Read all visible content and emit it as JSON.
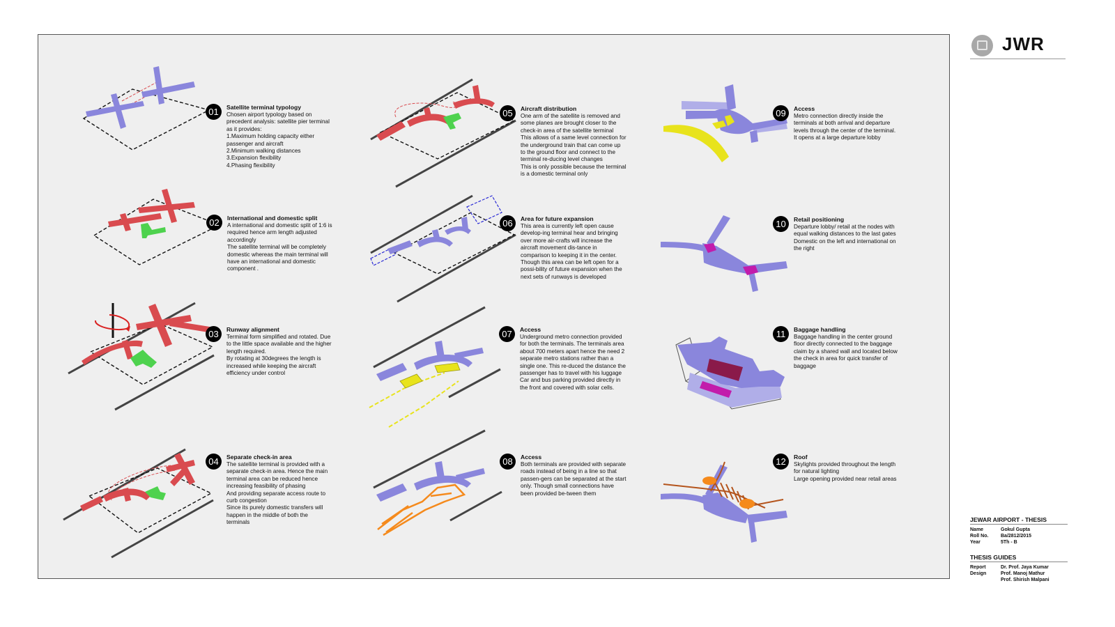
{
  "logo": {
    "text": "JWR",
    "icon": "building-plan-icon"
  },
  "info": {
    "project": "JEWAR AIRPORT - THESIS",
    "rows": [
      {
        "k": "Name",
        "v": "Gokul Gupta"
      },
      {
        "k": "Roll No.",
        "v": "Ba/2812/2015"
      },
      {
        "k": "Year",
        "v": "5Th - B"
      }
    ],
    "guides_title": "THESIS GUIDES",
    "guides": [
      {
        "k": "Report",
        "v": "Dr. Prof. Jaya Kumar"
      },
      {
        "k": "Design",
        "v": "Prof. Manoj Mathur"
      },
      {
        "k": "",
        "v": "Prof. Shirish Malpani"
      }
    ]
  },
  "colors": {
    "red": "#d94b4f",
    "green": "#4ed24e",
    "blue": "#8a86dc",
    "yellow": "#e8e31c",
    "orange": "#f58a1c",
    "magenta": "#c21cab",
    "maroon": "#8a1a4a"
  },
  "notes": [
    {
      "num": "01",
      "title": "Satellite terminal typology",
      "body": "Chosen airport typology based on precedent analysis: satellite pier terminal as it provides:\n1.Maximum holding capacity either passenger and aircraft\n2.Minimum walking distances\n3.Expansion flexibility\n4.Phasing flexibility"
    },
    {
      "num": "02",
      "title": "International and domestic split",
      "body": "A international and domestic split of 1:6 is required hence arm length adjusted accordingly\nThe satellite terminal will be completely domestic whereas the main terminal will have an international and domestic component ."
    },
    {
      "num": "03",
      "title": "Runway alignment",
      "body": "Terminal form simplified and rotated. Due to the little space available and the higher length required.\nBy rotating at 30degrees the length is increased while keeping the aircraft efficiency under control"
    },
    {
      "num": "04",
      "title": "Separate check-in area",
      "body": "The satellite terminal is provided with a separate check-in area. Hence the main terminal area can be reduced hence increasing feasibility of phasing\nAnd providing separate access route to curb congestion\nSince its purely domestic transfers will happen in the middle of both the terminals"
    },
    {
      "num": "05",
      "title": "Aircraft distribution",
      "body": "One arm of the satellite is removed and some planes are brought closer to the check-in area of the satellite terminal\nThis allows of a same level connection for the underground train that can come up to the ground floor and connect to the terminal re-ducing level changes\nThis is only possible because the terminal is a domestic terminal only"
    },
    {
      "num": "06",
      "title": "Area for future expansion",
      "body": "This area is currently left open cause develop-ing terminal hear and bringing over more air-crafts will increase the aircraft movement dis-tance in comparison to keeping it in the center. Though this area can be left open for a possi-bility of future expansion when the next sets of runways is developed"
    },
    {
      "num": "07",
      "title": "Access",
      "body": "Underground metro connection provided for both the terminals. The terminals area about 700 meters apart hence the need 2 separate metro stations rather than a single one. This re-duced the distance the passenger has to travel with his luggage\nCar and bus parking provided directly in the front and covered with solar cells."
    },
    {
      "num": "08",
      "title": "Access",
      "body": "Both terminals are provided with separate roads instead of being in a line so that passen-gers can be separated at the start only. Though small connections have been provided be-tween them"
    },
    {
      "num": "09",
      "title": "Access",
      "body": "Metro connection directly inside the terminals at both arrival and departure levels through the center of the terminal. It opens at a large departure lobby"
    },
    {
      "num": "10",
      "title": "Retail positioning",
      "body": "Departure lobby/ retail  at the nodes with equal walking distances to the last gates\nDomestic on the left and international on the right"
    },
    {
      "num": "11",
      "title": "Baggage handling",
      "body": "Baggage handling in the center ground floor directly connected to the baggage claim by a shared wall and located below the check in area for quick transfer of baggage"
    },
    {
      "num": "12",
      "title": "Roof",
      "body": "Skylights provided throughout the length for natural lighting\nLarge opening provided near retail areas"
    }
  ]
}
